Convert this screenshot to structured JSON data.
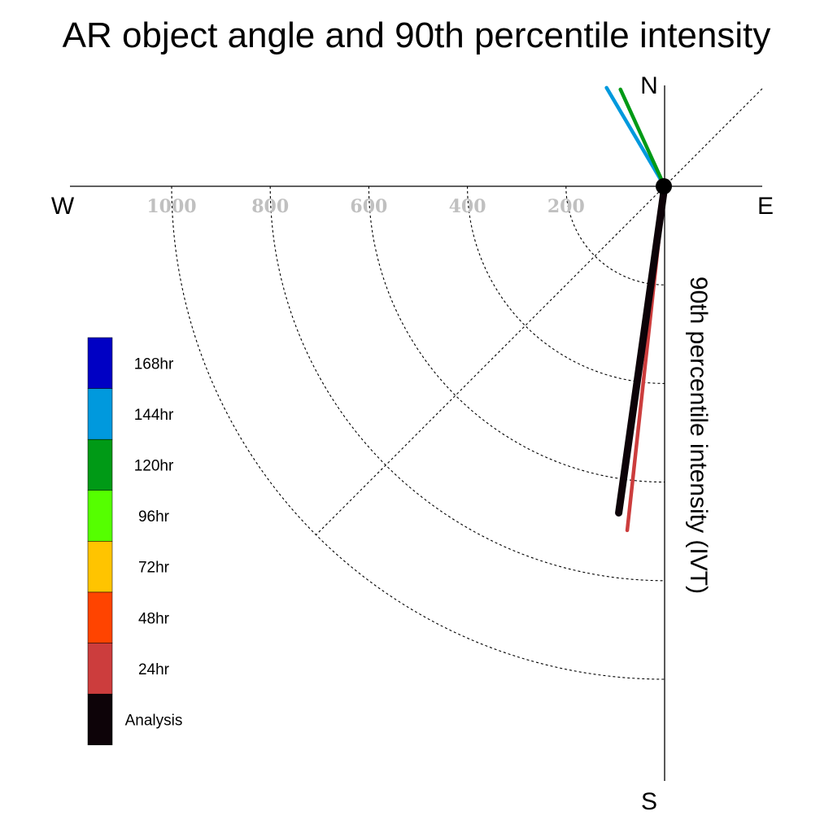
{
  "chart_data": {
    "type": "polar-vector",
    "title": "AR object angle and 90th percentile intensity",
    "radial_axis_label": "90th percentile intensity (IVT)",
    "compass": {
      "north": "N",
      "south": "S",
      "east": "E",
      "west": "W"
    },
    "radial_ticks": [
      {
        "value": 200,
        "label": "200"
      },
      {
        "value": 400,
        "label": "400"
      },
      {
        "value": 600,
        "label": "600"
      },
      {
        "value": 800,
        "label": "800"
      },
      {
        "value": 1000,
        "label": "1000"
      }
    ],
    "radial_max": 1000,
    "legend": [
      {
        "label": "168hr",
        "color": "#0000c4"
      },
      {
        "label": "144hr",
        "color": "#0099dd"
      },
      {
        "label": "120hr",
        "color": "#009a16"
      },
      {
        "label": "96hr",
        "color": "#55ff00"
      },
      {
        "label": "72hr",
        "color": "#ffc400"
      },
      {
        "label": "48hr",
        "color": "#ff4400"
      },
      {
        "label": "24hr",
        "color": "#cc3d3d"
      },
      {
        "label": "Analysis",
        "color": "#0d0308"
      }
    ],
    "series": [
      {
        "name": "144hr",
        "color": "#0099dd",
        "angle_deg": -30.5,
        "intensity": 232
      },
      {
        "name": "120hr",
        "color": "#009a16",
        "angle_deg": -24.5,
        "intensity": 216
      },
      {
        "name": "24hr",
        "color": "#cc3d3d",
        "angle_deg": 186.2,
        "intensity": 702
      },
      {
        "name": "Analysis",
        "color": "#0d0308",
        "angle_deg": 188.0,
        "intensity": 669
      }
    ]
  }
}
